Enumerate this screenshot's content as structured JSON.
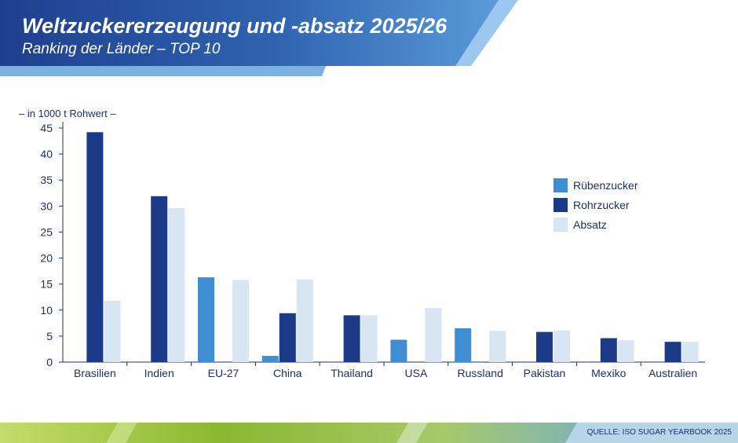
{
  "header": {
    "title": "Weltzuckererzeugung und -absatz 2025/26",
    "subtitle": "Ranking der Länder – TOP 10"
  },
  "unit_label": "– in 1000 t Rohwert –",
  "source": "QUELLE: ISO SUGAR YEARBOOK 2025",
  "colors": {
    "header_dark": "#1e3f8e",
    "header_light": "#5a9bd8",
    "axis": "#1b2f6e",
    "footer_green": "#8ab830",
    "footer_teal": "#7fb3b8"
  },
  "chart_data": {
    "type": "bar",
    "categories": [
      "Brasilien",
      "Indien",
      "EU-27",
      "China",
      "Thailand",
      "USA",
      "Russland",
      "Pakistan",
      "Mexiko",
      "Australien"
    ],
    "series": [
      {
        "name": "Rübenzucker",
        "color": "#3f8dd2",
        "values": [
          0,
          0,
          16.3,
          1.2,
          0,
          4.3,
          6.5,
          0,
          0,
          0
        ]
      },
      {
        "name": "Rohrzucker",
        "color": "#1b3a87",
        "values": [
          44.2,
          31.9,
          0,
          9.4,
          9.0,
          0,
          0,
          5.8,
          4.6,
          3.9
        ]
      },
      {
        "name": "Absatz",
        "color": "#d8e6f4",
        "values": [
          11.8,
          29.6,
          15.8,
          15.9,
          9.0,
          10.4,
          6.0,
          6.1,
          4.2,
          3.9
        ]
      }
    ],
    "ylim": [
      0,
      45
    ],
    "yticks": [
      0,
      5,
      10,
      15,
      20,
      25,
      30,
      35,
      40,
      45
    ],
    "legend_position": "right"
  }
}
